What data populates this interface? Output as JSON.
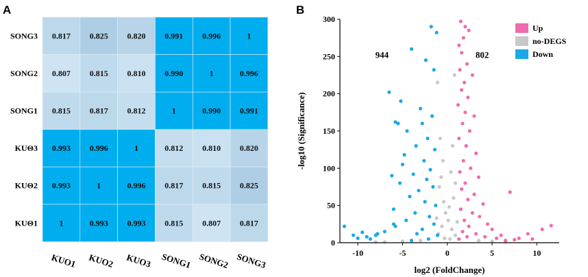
{
  "chart_data": [
    {
      "panel": "A",
      "type": "heatmap",
      "rows": [
        "SONG3",
        "SONG2",
        "SONG1",
        "KUO3",
        "KUO2",
        "KUO1"
      ],
      "row_labels_display": [
        "SONG3",
        "SONG2",
        "SONG1",
        "KUΘ3",
        "KUΘ2",
        "KUΘ1"
      ],
      "columns": [
        "KUO1",
        "KUO2",
        "KUO3",
        "SONG1",
        "SONG2",
        "SONG3"
      ],
      "values": [
        [
          0.817,
          0.825,
          0.82,
          0.991,
          0.996,
          1
        ],
        [
          0.807,
          0.815,
          0.81,
          0.99,
          1,
          0.996
        ],
        [
          0.815,
          0.817,
          0.812,
          1,
          0.99,
          0.991
        ],
        [
          0.993,
          0.996,
          1,
          0.812,
          0.81,
          0.82
        ],
        [
          0.993,
          1,
          0.996,
          0.817,
          0.815,
          0.825
        ],
        [
          1,
          0.993,
          0.993,
          0.815,
          0.807,
          0.817
        ]
      ],
      "labels": [
        [
          "0.817",
          "0.825",
          "0.820",
          "0.991",
          "0.996",
          "1"
        ],
        [
          "0.807",
          "0.815",
          "0.810",
          "0.990",
          "1",
          "0.996"
        ],
        [
          "0.815",
          "0.817",
          "0.812",
          "1",
          "0.990",
          "0.991"
        ],
        [
          "0.993",
          "0.996",
          "1",
          "0.812",
          "0.810",
          "0.820"
        ],
        [
          "0.993",
          "1",
          "0.996",
          "0.817",
          "0.815",
          "0.825"
        ],
        [
          "1",
          "0.993",
          "0.993",
          "0.815",
          "0.807",
          "0.817"
        ]
      ],
      "colors": {
        "high": "#00aeef",
        "low": "#cfe5f4",
        "mid": "#aacde4"
      }
    },
    {
      "panel": "B",
      "type": "scatter",
      "title": "",
      "xlabel": "log2 (FoldChange)",
      "ylabel": "-log10 (Significance)",
      "xlim": [
        -12,
        12.5
      ],
      "ylim": [
        0,
        300
      ],
      "xticks": [
        -10,
        -5,
        0,
        5,
        10
      ],
      "yticks": [
        0,
        50,
        100,
        150,
        200,
        250,
        300
      ],
      "annotations": {
        "down_count": "944",
        "up_count": "802"
      },
      "legend": {
        "position": "top-right",
        "entries": [
          {
            "name": "Up",
            "color": "#f06bb0"
          },
          {
            "name": "no-DEGS",
            "color": "#c8c8c8"
          },
          {
            "name": "Down",
            "color": "#1aa9e6"
          }
        ]
      },
      "series": [
        {
          "name": "no-DEGS",
          "color": "#c8c8c8",
          "points": [
            [
              -1.1,
              215
            ],
            [
              0.8,
              225
            ],
            [
              -0.5,
              110
            ],
            [
              0.4,
              95
            ],
            [
              -0.9,
              75
            ],
            [
              0.7,
              60
            ],
            [
              -0.2,
              40
            ],
            [
              0.1,
              30
            ],
            [
              -0.6,
              22
            ],
            [
              0.5,
              18
            ],
            [
              -1,
              12
            ],
            [
              0.9,
              10
            ],
            [
              -0.3,
              6
            ],
            [
              0.3,
              5
            ],
            [
              -3,
              3
            ],
            [
              3.5,
              3
            ],
            [
              -5,
              2
            ],
            [
              5,
              2
            ],
            [
              -7,
              1
            ],
            [
              6.5,
              1
            ],
            [
              -8,
              1
            ],
            [
              -0.8,
              140
            ],
            [
              0.6,
              130
            ],
            [
              -0.4,
              55
            ],
            [
              0.2,
              48
            ],
            [
              -1.2,
              33
            ],
            [
              1.1,
              28
            ],
            [
              -0.7,
              88
            ],
            [
              0.9,
              80
            ]
          ]
        },
        {
          "name": "Up",
          "color": "#f06bb0",
          "points": [
            [
              1.5,
              297
            ],
            [
              2,
              290
            ],
            [
              2.4,
              285
            ],
            [
              1.8,
              275
            ],
            [
              1.3,
              265
            ],
            [
              1.6,
              255
            ],
            [
              2.2,
              240
            ],
            [
              1.4,
              232
            ],
            [
              2.8,
              225
            ],
            [
              1.9,
              215
            ],
            [
              1.6,
              205
            ],
            [
              2.3,
              195
            ],
            [
              1.2,
              185
            ],
            [
              2.0,
              175
            ],
            [
              3.0,
              170
            ],
            [
              1.7,
              160
            ],
            [
              2.5,
              150
            ],
            [
              1.3,
              140
            ],
            [
              2.1,
              130
            ],
            [
              3.2,
              120
            ],
            [
              1.8,
              110
            ],
            [
              2.6,
              100
            ],
            [
              1.4,
              95
            ],
            [
              3.5,
              88
            ],
            [
              2.0,
              80
            ],
            [
              1.6,
              72
            ],
            [
              3.0,
              65
            ],
            [
              2.3,
              58
            ],
            [
              4.0,
              52
            ],
            [
              1.5,
              45
            ],
            [
              2.8,
              40
            ],
            [
              3.6,
              35
            ],
            [
              1.9,
              30
            ],
            [
              4.5,
              25
            ],
            [
              2.4,
              22
            ],
            [
              5.0,
              18
            ],
            [
              1.7,
              15
            ],
            [
              3.2,
              12
            ],
            [
              6.0,
              10
            ],
            [
              2.2,
              8
            ],
            [
              7.0,
              68
            ],
            [
              8.0,
              6
            ],
            [
              9.0,
              12
            ],
            [
              9.5,
              5
            ],
            [
              10.6,
              18
            ],
            [
              11.6,
              23
            ],
            [
              7.5,
              4
            ],
            [
              6.5,
              3
            ],
            [
              1.3,
              5
            ],
            [
              4.2,
              8
            ],
            [
              5.5,
              6
            ]
          ]
        },
        {
          "name": "Down",
          "color": "#1aa9e6",
          "points": [
            [
              -1.8,
              290
            ],
            [
              -1.2,
              282
            ],
            [
              -2.4,
              245
            ],
            [
              -4.0,
              260
            ],
            [
              -1.5,
              232
            ],
            [
              -6.5,
              202
            ],
            [
              -5.2,
              190
            ],
            [
              -3.0,
              180
            ],
            [
              -1.7,
              170
            ],
            [
              -2.8,
              160
            ],
            [
              -5.8,
              162
            ],
            [
              -4.5,
              150
            ],
            [
              -2.2,
              140
            ],
            [
              -3.5,
              130
            ],
            [
              -1.4,
              125
            ],
            [
              -4.8,
              118
            ],
            [
              -2.6,
              110
            ],
            [
              -5.0,
              105
            ],
            [
              -1.9,
              98
            ],
            [
              -3.8,
              92
            ],
            [
              -2.3,
              85
            ],
            [
              -5.3,
              80
            ],
            [
              -1.6,
              75
            ],
            [
              -3.2,
              70
            ],
            [
              -4.2,
              62
            ],
            [
              -2.5,
              55
            ],
            [
              -1.3,
              50
            ],
            [
              -6.0,
              45
            ],
            [
              -3.6,
              40
            ],
            [
              -2.0,
              35
            ],
            [
              -4.6,
              30
            ],
            [
              -1.5,
              25
            ],
            [
              -5.8,
              22
            ],
            [
              -2.8,
              18
            ],
            [
              -7.0,
              15
            ],
            [
              -3.4,
              12
            ],
            [
              -8.0,
              10
            ],
            [
              -9.0,
              8
            ],
            [
              -10.0,
              6
            ],
            [
              -11.5,
              22
            ],
            [
              -10.5,
              10
            ],
            [
              -9.5,
              14
            ],
            [
              -6.2,
              90
            ],
            [
              -5.5,
              160
            ],
            [
              -6.0,
              25
            ],
            [
              -7.8,
              12
            ],
            [
              -8.6,
              5
            ],
            [
              -1.1,
              10
            ],
            [
              -2.1,
              5
            ],
            [
              -4.0,
              3
            ]
          ]
        }
      ]
    }
  ]
}
